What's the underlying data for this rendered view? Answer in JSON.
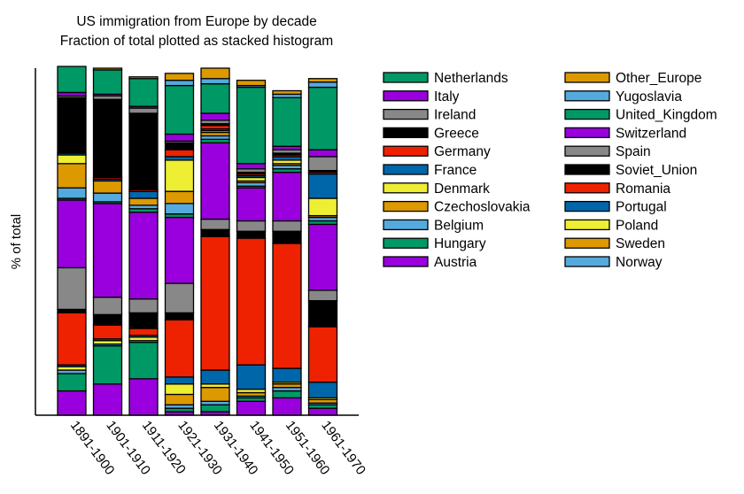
{
  "chart_data": {
    "type": "bar",
    "stacked": true,
    "title": "US immigration from Europe by decade",
    "subtitle": "Fraction of total plotted as stacked histogram",
    "xlabel": "",
    "ylabel": "% of total",
    "ylim": [
      0,
      100
    ],
    "grid": false,
    "legend_position": "right",
    "categories": [
      "1891-1900",
      "1901-1910",
      "1911-1920",
      "1921-1930",
      "1931-1940",
      "1941-1950",
      "1951-1960",
      "1961-1970"
    ],
    "series": [
      {
        "name": "Austria",
        "color": "#9900dd",
        "values": [
          7,
          9,
          10.5,
          1,
          1,
          4,
          5,
          2
        ]
      },
      {
        "name": "Hungary",
        "color": "#009966",
        "values": [
          5,
          11,
          10.5,
          1,
          2,
          1,
          2,
          1
        ]
      },
      {
        "name": "Belgium",
        "color": "#55aadd",
        "values": [
          1,
          0.5,
          0.5,
          1,
          1,
          0.5,
          1,
          0.5
        ]
      },
      {
        "name": "Czechoslovakia",
        "color": "#dd9900",
        "values": [
          0,
          0,
          0,
          3,
          4,
          1,
          1,
          1
        ]
      },
      {
        "name": "Denmark",
        "color": "#eeee33",
        "values": [
          1,
          1,
          1,
          3,
          1,
          1,
          0.5,
          0.5
        ]
      },
      {
        "name": "France",
        "color": "#0066aa",
        "values": [
          0.5,
          0.5,
          0.5,
          2,
          4,
          7,
          4,
          4.5
        ]
      },
      {
        "name": "Germany",
        "color": "#ee2200",
        "values": [
          15,
          4,
          2,
          16.5,
          38.5,
          36.5,
          36,
          16
        ]
      },
      {
        "name": "Greece",
        "color": "#000000",
        "values": [
          1,
          3,
          4.5,
          2,
          2,
          2,
          3.5,
          7.5
        ]
      },
      {
        "name": "Ireland",
        "color": "#888888",
        "values": [
          12,
          5,
          4,
          8.5,
          3,
          3,
          3,
          3
        ]
      },
      {
        "name": "Italy",
        "color": "#9900dd",
        "values": [
          19.5,
          27,
          25,
          19,
          22,
          9.5,
          14,
          19
        ]
      },
      {
        "name": "Netherlands",
        "color": "#009966",
        "values": [
          0.5,
          0.5,
          1,
          1,
          1,
          0.5,
          1,
          1
        ]
      },
      {
        "name": "Norway",
        "color": "#55aadd",
        "values": [
          3,
          2.5,
          1,
          3,
          1,
          1,
          1,
          1
        ]
      },
      {
        "name": "Sweden",
        "color": "#dd9900",
        "values": [
          7,
          3.5,
          2,
          3.5,
          1,
          0.5,
          0.5,
          0.5
        ]
      },
      {
        "name": "Poland",
        "color": "#eeee33",
        "values": [
          2.5,
          0,
          0,
          9,
          0.5,
          1,
          1,
          5
        ]
      },
      {
        "name": "Portugal",
        "color": "#0066aa",
        "values": [
          0.5,
          0.5,
          2,
          1,
          0.5,
          0.5,
          1,
          7
        ]
      },
      {
        "name": "Romania",
        "color": "#ee2200",
        "values": [
          0,
          0.5,
          0.5,
          2,
          1,
          0.5,
          0.5,
          0.5
        ]
      },
      {
        "name": "Soviet_Union",
        "color": "#000000",
        "values": [
          16,
          22.5,
          22,
          2,
          0.5,
          0.5,
          0.5,
          0.5
        ]
      },
      {
        "name": "Spain",
        "color": "#888888",
        "values": [
          0.5,
          1,
          1.5,
          0.5,
          1,
          1,
          1,
          4
        ]
      },
      {
        "name": "Switzerland",
        "color": "#9900dd",
        "values": [
          1,
          0.5,
          0.5,
          2,
          2,
          1.5,
          1,
          2
        ]
      },
      {
        "name": "United_Kingdom",
        "color": "#009966",
        "values": [
          7.5,
          7,
          8,
          14,
          8.5,
          22,
          14,
          18
        ]
      },
      {
        "name": "Yugoslavia",
        "color": "#55aadd",
        "values": [
          0,
          0,
          0,
          1.5,
          1.5,
          0.5,
          1,
          1.5
        ]
      },
      {
        "name": "Other_Europe",
        "color": "#dd9900",
        "values": [
          0,
          0.5,
          0.5,
          2,
          3,
          1.5,
          1,
          1
        ]
      }
    ],
    "legend_order": [
      "Netherlands",
      "Italy",
      "Ireland",
      "Greece",
      "Germany",
      "France",
      "Denmark",
      "Czechoslovakia",
      "Belgium",
      "Hungary",
      "Austria",
      "Other_Europe",
      "Yugoslavia",
      "United_Kingdom",
      "Switzerland",
      "Spain",
      "Soviet_Union",
      "Romania",
      "Portugal",
      "Poland",
      "Sweden",
      "Norway"
    ]
  }
}
